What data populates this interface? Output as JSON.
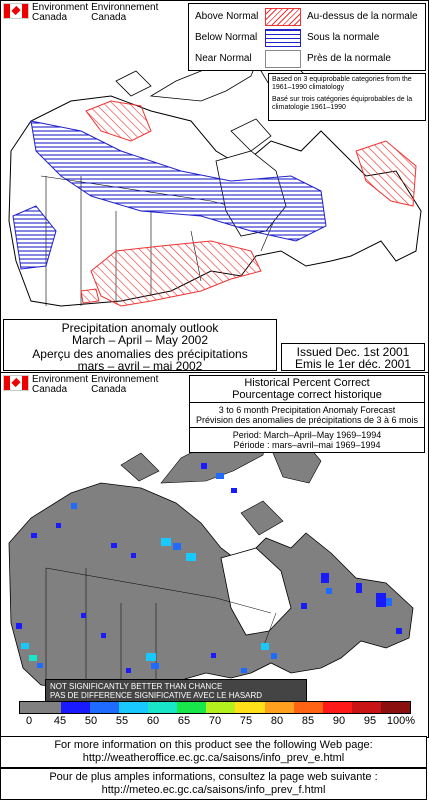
{
  "agency": {
    "en_line1": "Environment",
    "en_line2": "Canada",
    "fr_line1": "Environnement",
    "fr_line2": "Canada"
  },
  "top": {
    "legend": [
      {
        "en": "Above Normal",
        "fr": "Au-dessus de la normale",
        "swatch": "above"
      },
      {
        "en": "Below Normal",
        "fr": "Sous la normale",
        "swatch": "below"
      },
      {
        "en": "Near Normal",
        "fr": "Près de la normale",
        "swatch": "near"
      }
    ],
    "basis_en": "Based on 3 equiprobable categories from the 1961–1990 climatology",
    "basis_fr": "Basé sur trois catégories équiprobables de la climatologie 1961–1990",
    "title_en_1": "Precipitation anomaly outlook",
    "title_en_2": "March – April – May 2002",
    "title_fr_1": "Aperçu des anomalies des précipitations",
    "title_fr_2": "mars – avril – mai 2002",
    "issued_en": "Issued Dec. 1st 2001",
    "issued_fr": "Emis le 1er déc. 2001"
  },
  "bottom": {
    "title_en": "Historical Percent Correct",
    "title_fr": "Pourcentage correct historique",
    "sub_en": "3 to 6 month Precipitation Anomaly Forecast",
    "sub_fr": "Prévision des anomalies de précipitations de 3 à 6 mois",
    "period_en": "Period: March–April–May 1969–1994",
    "period_fr": "Période : mars–avril–mai 1969–1994",
    "notsig_en": "NOT SIGNIFICANTLY BETTER THAN CHANCE",
    "notsig_fr": "PAS DE DIFFERENCE SIGNIFICATIVE AVEC LE HASARD",
    "colorbar_ticks": [
      "0",
      "45",
      "50",
      "55",
      "60",
      "65",
      "70",
      "75",
      "80",
      "85",
      "90",
      "95",
      "100%"
    ],
    "colorbar_colors": [
      "#808080",
      "#1a1aff",
      "#1f6bff",
      "#18c8ff",
      "#19e6c8",
      "#19e64a",
      "#b4f01e",
      "#ffe019",
      "#ffa01e",
      "#ff6414",
      "#ff1a1a",
      "#c81414",
      "#8c0f0f"
    ]
  },
  "footer": {
    "en_1": "For more information on this product see the following Web page:",
    "en_2": "http://weatheroffice.ec.gc.ca/saisons/info_prev_e.html",
    "fr_1": "Pour de plus amples informations, consultez la page web suivante :",
    "fr_2": "http://meteo.ec.gc.ca/saisons/info_prev_f.html"
  }
}
